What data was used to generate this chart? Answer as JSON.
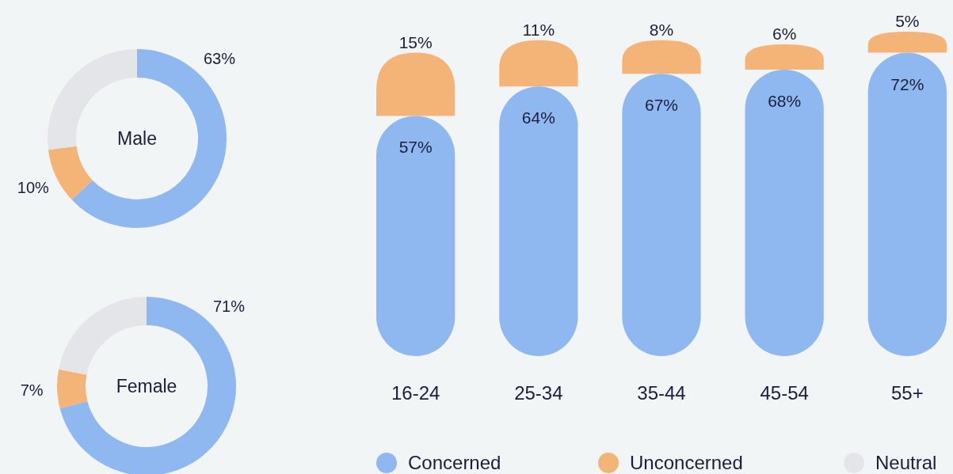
{
  "chart_data": [
    {
      "type": "donut",
      "title": "Male",
      "categories": [
        null,
        null,
        null
      ],
      "values": [
        63,
        10,
        27
      ],
      "colors": [
        "#8fb8f0",
        "#f4b478",
        "#e4e5e8"
      ],
      "value_labels": [
        "63%",
        "10%",
        null
      ]
    },
    {
      "type": "donut",
      "title": "Female",
      "categories": [
        "Concerned",
        "Unconcerned",
        "Neutral"
      ],
      "values": [
        71,
        7,
        22
      ],
      "colors": [
        "#8fb8f0",
        "#f4b478",
        "#e4e5e8"
      ],
      "value_labels": [
        "71%",
        "7%",
        null
      ],
      "legend": "bottom"
    },
    {
      "type": "bar",
      "stacked": true,
      "categories": [
        "16-24",
        "25-34",
        "35-44",
        "45-54",
        "55+"
      ],
      "series": [
        {
          "color": "#8fb8f0",
          "values": [
            57,
            64,
            67,
            68,
            72
          ],
          "value_labels": [
            "57%",
            "64%",
            "67%",
            "68%",
            "72%"
          ]
        },
        {
          "color": "#f4b478",
          "values": [
            15,
            11,
            8,
            6,
            5
          ],
          "value_labels": [
            "15%",
            "11%",
            "8%",
            "6%",
            "5%"
          ]
        }
      ]
    }
  ]
}
